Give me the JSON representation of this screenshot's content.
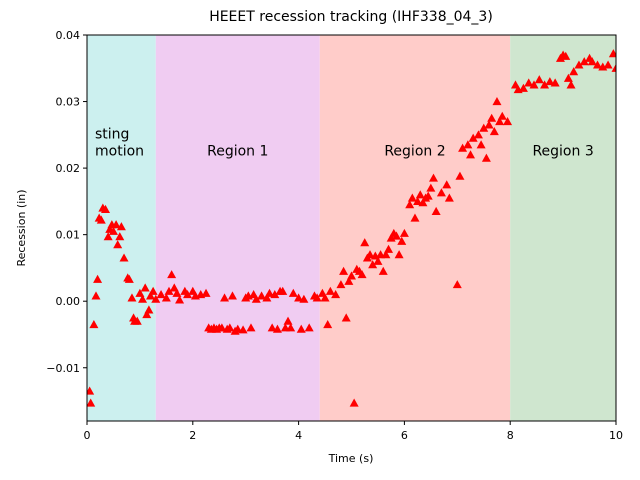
{
  "chart_data": {
    "type": "scatter",
    "title": "HEEET recession tracking (IHF338_04_3)",
    "x_label": "Time (s)",
    "y_label": "Recession (in)",
    "xlim": [
      0,
      10
    ],
    "ylim": [
      -0.018,
      0.04
    ],
    "xticks": [
      0,
      2,
      4,
      6,
      8,
      10
    ],
    "yticks": [
      {
        "value": -0.01,
        "label": "−0.01"
      },
      {
        "value": 0,
        "label": "0.00"
      },
      {
        "value": 0.01,
        "label": "0.01"
      },
      {
        "value": 0.02,
        "label": "0.02"
      },
      {
        "value": 0.03,
        "label": "0.03"
      },
      {
        "value": 0.04,
        "label": "0.04"
      }
    ],
    "regions": [
      {
        "label": "sting motion",
        "start": 0,
        "end": 1.3,
        "color": "#ccf0ef"
      },
      {
        "label": "Region 1",
        "start": 1.3,
        "end": 4.4,
        "color": "#f0ccf2"
      },
      {
        "label": "Region 2",
        "start": 4.4,
        "end": 8.0,
        "color": "#ffccc9"
      },
      {
        "label": "Region 3",
        "start": 8.0,
        "end": 10,
        "color": "#cfe6cf"
      }
    ],
    "series": [
      {
        "color": "#ff0000",
        "x": [
          0.05,
          0.07,
          0.13,
          0.17,
          0.2,
          0.23,
          0.27,
          0.3,
          0.35,
          0.4,
          0.43,
          0.47,
          0.5,
          0.55,
          0.58,
          0.62,
          0.65,
          0.7,
          0.77,
          0.8,
          0.85,
          0.88,
          0.9,
          0.95,
          1.0,
          1.05,
          1.1,
          1.13,
          1.17,
          1.2,
          1.25,
          1.3,
          1.4,
          1.5,
          1.55,
          1.6,
          1.65,
          1.7,
          1.75,
          1.85,
          1.9,
          2.0,
          2.05,
          2.15,
          2.25,
          2.3,
          2.35,
          2.4,
          2.45,
          2.5,
          2.55,
          2.6,
          2.65,
          2.7,
          2.75,
          2.8,
          2.85,
          2.95,
          3.0,
          3.05,
          3.1,
          3.15,
          3.2,
          3.3,
          3.4,
          3.45,
          3.5,
          3.55,
          3.6,
          3.65,
          3.7,
          3.75,
          3.8,
          3.85,
          3.9,
          4.0,
          4.05,
          4.1,
          4.2,
          4.3,
          4.35,
          4.45,
          4.5,
          4.55,
          4.6,
          4.7,
          4.8,
          4.85,
          4.9,
          4.95,
          5.0,
          5.05,
          5.1,
          5.15,
          5.2,
          5.25,
          5.3,
          5.35,
          5.4,
          5.45,
          5.5,
          5.55,
          5.6,
          5.65,
          5.7,
          5.75,
          5.8,
          5.85,
          5.9,
          5.95,
          6.0,
          6.1,
          6.15,
          6.2,
          6.25,
          6.3,
          6.35,
          6.4,
          6.45,
          6.5,
          6.55,
          6.6,
          6.7,
          6.8,
          6.85,
          7.0,
          7.05,
          7.1,
          7.2,
          7.25,
          7.3,
          7.4,
          7.45,
          7.5,
          7.55,
          7.6,
          7.65,
          7.7,
          7.75,
          7.8,
          7.85,
          7.95,
          8.1,
          8.15,
          8.25,
          8.35,
          8.45,
          8.55,
          8.65,
          8.75,
          8.85,
          8.95,
          9.0,
          9.05,
          9.1,
          9.15,
          9.2,
          9.3,
          9.4,
          9.5,
          9.55,
          9.65,
          9.75,
          9.85,
          9.95,
          10.0
        ],
        "values": [
          -0.0135,
          -0.0153,
          -0.0035,
          0.0008,
          0.0033,
          0.0125,
          0.0122,
          0.014,
          0.0138,
          0.0097,
          0.0108,
          0.0115,
          0.0105,
          0.0115,
          0.0085,
          0.0097,
          0.0112,
          0.0065,
          0.0035,
          0.0033,
          0.0005,
          -0.0025,
          -0.003,
          -0.003,
          0.0012,
          0.0003,
          0.002,
          -0.002,
          -0.0013,
          0.0008,
          0.0015,
          0.0003,
          0.001,
          0.0005,
          0.0015,
          0.004,
          0.002,
          0.0012,
          0.0002,
          0.0015,
          0.001,
          0.0015,
          0.0008,
          0.001,
          0.0012,
          -0.004,
          -0.0042,
          -0.004,
          -0.0042,
          -0.004,
          -0.004,
          0.0005,
          -0.0042,
          -0.004,
          0.0008,
          -0.0045,
          -0.0042,
          -0.0043,
          0.0005,
          0.0008,
          -0.004,
          0.001,
          0.0003,
          0.0008,
          0.0005,
          0.0012,
          -0.004,
          0.001,
          -0.0042,
          0.0015,
          0.0015,
          -0.004,
          -0.003,
          -0.004,
          0.0012,
          0.0005,
          -0.0042,
          0.0003,
          -0.004,
          0.0008,
          0.0005,
          0.0012,
          0.0005,
          -0.0035,
          0.0015,
          0.001,
          0.0025,
          0.0045,
          -0.0025,
          0.003,
          0.0038,
          -0.0153,
          0.0048,
          0.0045,
          0.004,
          0.0088,
          0.0065,
          0.007,
          0.0055,
          0.0068,
          0.006,
          0.007,
          0.0045,
          0.007,
          0.0078,
          0.0095,
          0.0102,
          0.0098,
          0.007,
          0.009,
          0.0102,
          0.0145,
          0.0155,
          0.0125,
          0.015,
          0.016,
          0.0148,
          0.0155,
          0.0158,
          0.017,
          0.0185,
          0.0135,
          0.0163,
          0.0175,
          0.0155,
          0.0025,
          0.0188,
          0.023,
          0.0235,
          0.022,
          0.0245,
          0.025,
          0.0235,
          0.026,
          0.0215,
          0.0265,
          0.0275,
          0.0255,
          0.03,
          0.027,
          0.0278,
          0.027,
          0.0325,
          0.0318,
          0.032,
          0.0328,
          0.0325,
          0.0333,
          0.0325,
          0.033,
          0.0328,
          0.0365,
          0.037,
          0.0368,
          0.0335,
          0.0325,
          0.0345,
          0.0355,
          0.036,
          0.0365,
          0.036,
          0.0355,
          0.0352,
          0.0355,
          0.0372,
          0.035
        ]
      }
    ]
  }
}
